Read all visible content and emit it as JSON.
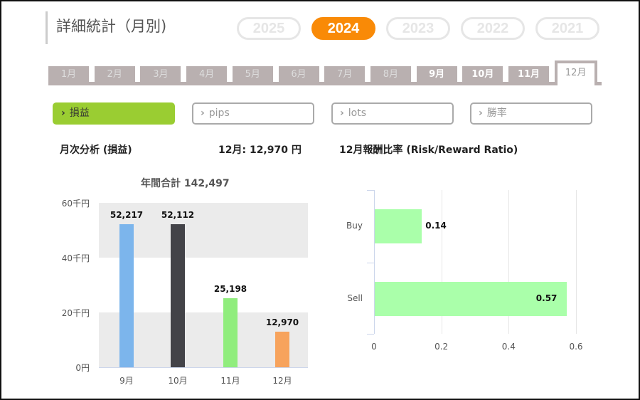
{
  "header": {
    "title": "詳細統計（月別)"
  },
  "years": [
    {
      "label": "2025",
      "active": false
    },
    {
      "label": "2024",
      "active": true
    },
    {
      "label": "2023",
      "active": false
    },
    {
      "label": "2022",
      "active": false
    },
    {
      "label": "2021",
      "active": false
    }
  ],
  "months": [
    "1月",
    "2月",
    "3月",
    "4月",
    "5月",
    "6月",
    "7月",
    "8月",
    "9月",
    "10月",
    "11月",
    "12月"
  ],
  "metrics": [
    "損益",
    "pips",
    "lots",
    "勝率"
  ],
  "summary": {
    "title": "月次分析 (損益)",
    "current": "12月:  12,970 円",
    "rr_title": "12月報酬比率 (Risk/Reward Ratio)"
  },
  "colors": {
    "accent": "#f98a07",
    "green": "#9acd32"
  },
  "chart_data": [
    {
      "type": "bar",
      "title": "年間合計 142,497",
      "categories": [
        "9月",
        "10月",
        "11月",
        "12月"
      ],
      "values": [
        52217,
        52112,
        25198,
        12970
      ],
      "value_labels": [
        "52,217",
        "52,112",
        "25,198",
        "12,970"
      ],
      "colors": [
        "#7cb5ec",
        "#434348",
        "#90ed7d",
        "#f7a35c"
      ],
      "ylim": [
        0,
        60000
      ],
      "yticks": [
        "0円",
        "20千円",
        "40千円",
        "60千円"
      ]
    },
    {
      "type": "bar",
      "orientation": "horizontal",
      "categories": [
        "Buy",
        "Sell"
      ],
      "values": [
        0.14,
        0.57
      ],
      "value_labels": [
        "0.14",
        "0.57"
      ],
      "color": "#aaffaa",
      "xlim": [
        0,
        0.6
      ],
      "xticks": [
        "0",
        "0.2",
        "0.4",
        "0.6"
      ],
      "grid": true
    }
  ]
}
